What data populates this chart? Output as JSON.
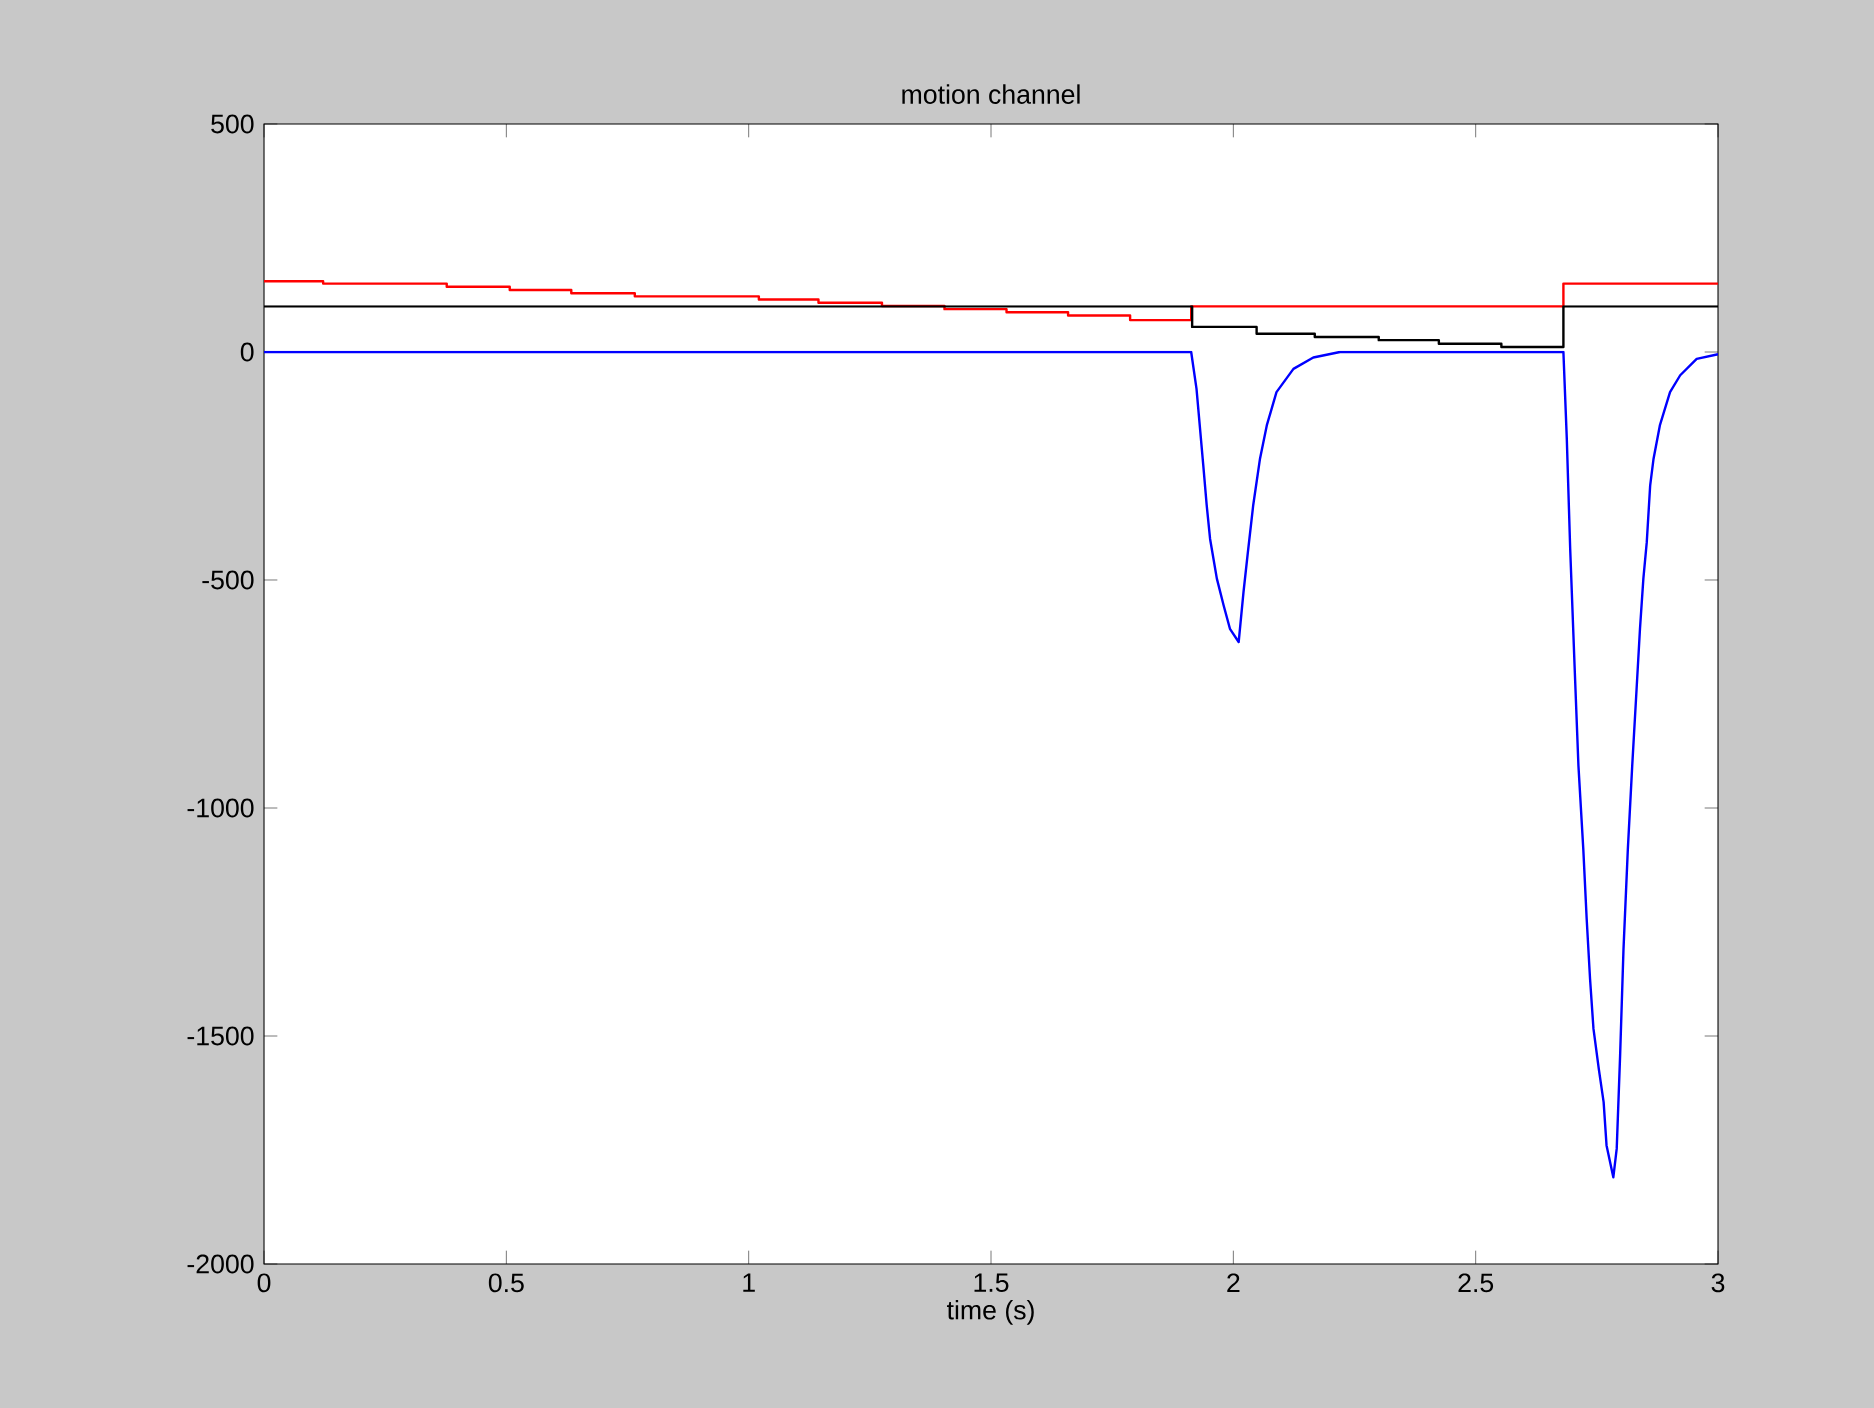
{
  "chart_data": {
    "type": "line",
    "title": "motion channel",
    "xlabel": "time (s)",
    "xlim": [
      0,
      3
    ],
    "ylim": [
      -2000,
      500
    ],
    "xticks": [
      0,
      0.5,
      1,
      1.5,
      2,
      2.5,
      3
    ],
    "yticks": [
      -2000,
      -1500,
      -1000,
      -500,
      0,
      500
    ],
    "grid": false,
    "marker": "none",
    "line_style": "solid",
    "series": [
      {
        "type": "step",
        "color": "#ff0000",
        "x": [
          0,
          0.122,
          0.377,
          0.507,
          0.634,
          0.765,
          1.021,
          1.144,
          1.275,
          1.404,
          1.532,
          1.659,
          1.787,
          1.913,
          2.681,
          3
        ],
        "values": [
          155,
          150,
          143,
          136,
          129,
          122,
          115,
          108,
          101,
          94,
          87,
          80,
          70,
          100,
          150,
          150
        ]
      },
      {
        "type": "step",
        "color": "#000000",
        "x": [
          0,
          1.915,
          2.048,
          2.168,
          2.3,
          2.424,
          2.553,
          2.681,
          3
        ],
        "values": [
          100,
          55,
          40,
          33,
          26,
          18,
          11,
          100,
          100
        ]
      },
      {
        "color": "#0000ff",
        "x": [
          0,
          1.913,
          1.924,
          1.938,
          1.945,
          1.952,
          1.966,
          1.98,
          1.993,
          2.011,
          2.021,
          2.03,
          2.041,
          2.055,
          2.069,
          2.089,
          2.124,
          2.165,
          2.22,
          2.681,
          2.688,
          2.695,
          2.704,
          2.712,
          2.722,
          2.729,
          2.736,
          2.743,
          2.754,
          2.764,
          2.77,
          2.784,
          2.791,
          2.798,
          2.805,
          2.814,
          2.823,
          2.832,
          2.839,
          2.846,
          2.853,
          2.86,
          2.867,
          2.88,
          2.901,
          2.922,
          2.956,
          3
        ],
        "values": [
          0,
          0,
          -81,
          -249,
          -336,
          -410,
          -497,
          -556,
          -607,
          -636,
          -526,
          -439,
          -336,
          -234,
          -161,
          -88,
          -37,
          -12,
          0,
          0,
          -190,
          -432,
          -687,
          -907,
          -1089,
          -1243,
          -1375,
          -1484,
          -1572,
          -1645,
          -1740,
          -1810,
          -1747,
          -1543,
          -1309,
          -1089,
          -907,
          -739,
          -607,
          -497,
          -417,
          -293,
          -234,
          -161,
          -88,
          -51,
          -15,
          -5
        ]
      }
    ]
  }
}
